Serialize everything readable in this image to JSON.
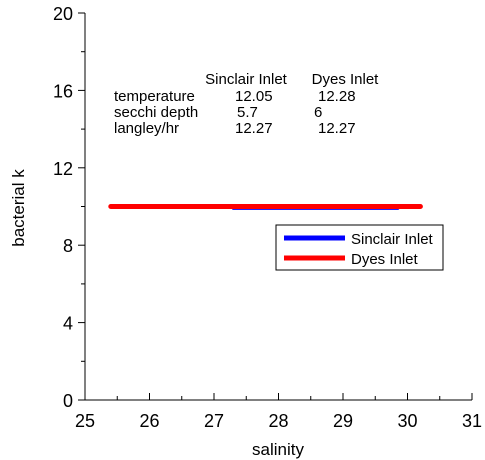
{
  "chart_data": {
    "type": "line",
    "xlabel": "salinity",
    "ylabel": "bacterial k",
    "xlim": [
      25,
      31
    ],
    "ylim": [
      0,
      20
    ],
    "x_ticks": [
      25,
      26,
      27,
      28,
      29,
      30,
      31
    ],
    "y_ticks": [
      0,
      4,
      8,
      12,
      16,
      20
    ],
    "grid": false,
    "legend_position": "center-right",
    "series": [
      {
        "name": "Sinclair Inlet",
        "color": "#0000ff",
        "x": [
          27.3,
          28.0,
          29.0,
          29.85
        ],
        "y": [
          9.9,
          9.9,
          9.9,
          9.9
        ]
      },
      {
        "name": "Dyes Inlet",
        "color": "#ff0000",
        "x": [
          25.4,
          26.0,
          27.0,
          28.0,
          29.0,
          30.2
        ],
        "y": [
          10.0,
          10.0,
          10.0,
          10.0,
          10.0,
          10.0
        ]
      }
    ],
    "annotation_table": {
      "columns": [
        "Sinclair Inlet",
        "Dyes Inlet"
      ],
      "rows": [
        {
          "label": "temperature",
          "values": [
            "12.05",
            "12.28"
          ]
        },
        {
          "label": "secchi depth",
          "values": [
            "5.7",
            "6"
          ]
        },
        {
          "label": "langley/hr",
          "values": [
            "12.27",
            "12.27"
          ]
        }
      ]
    }
  }
}
